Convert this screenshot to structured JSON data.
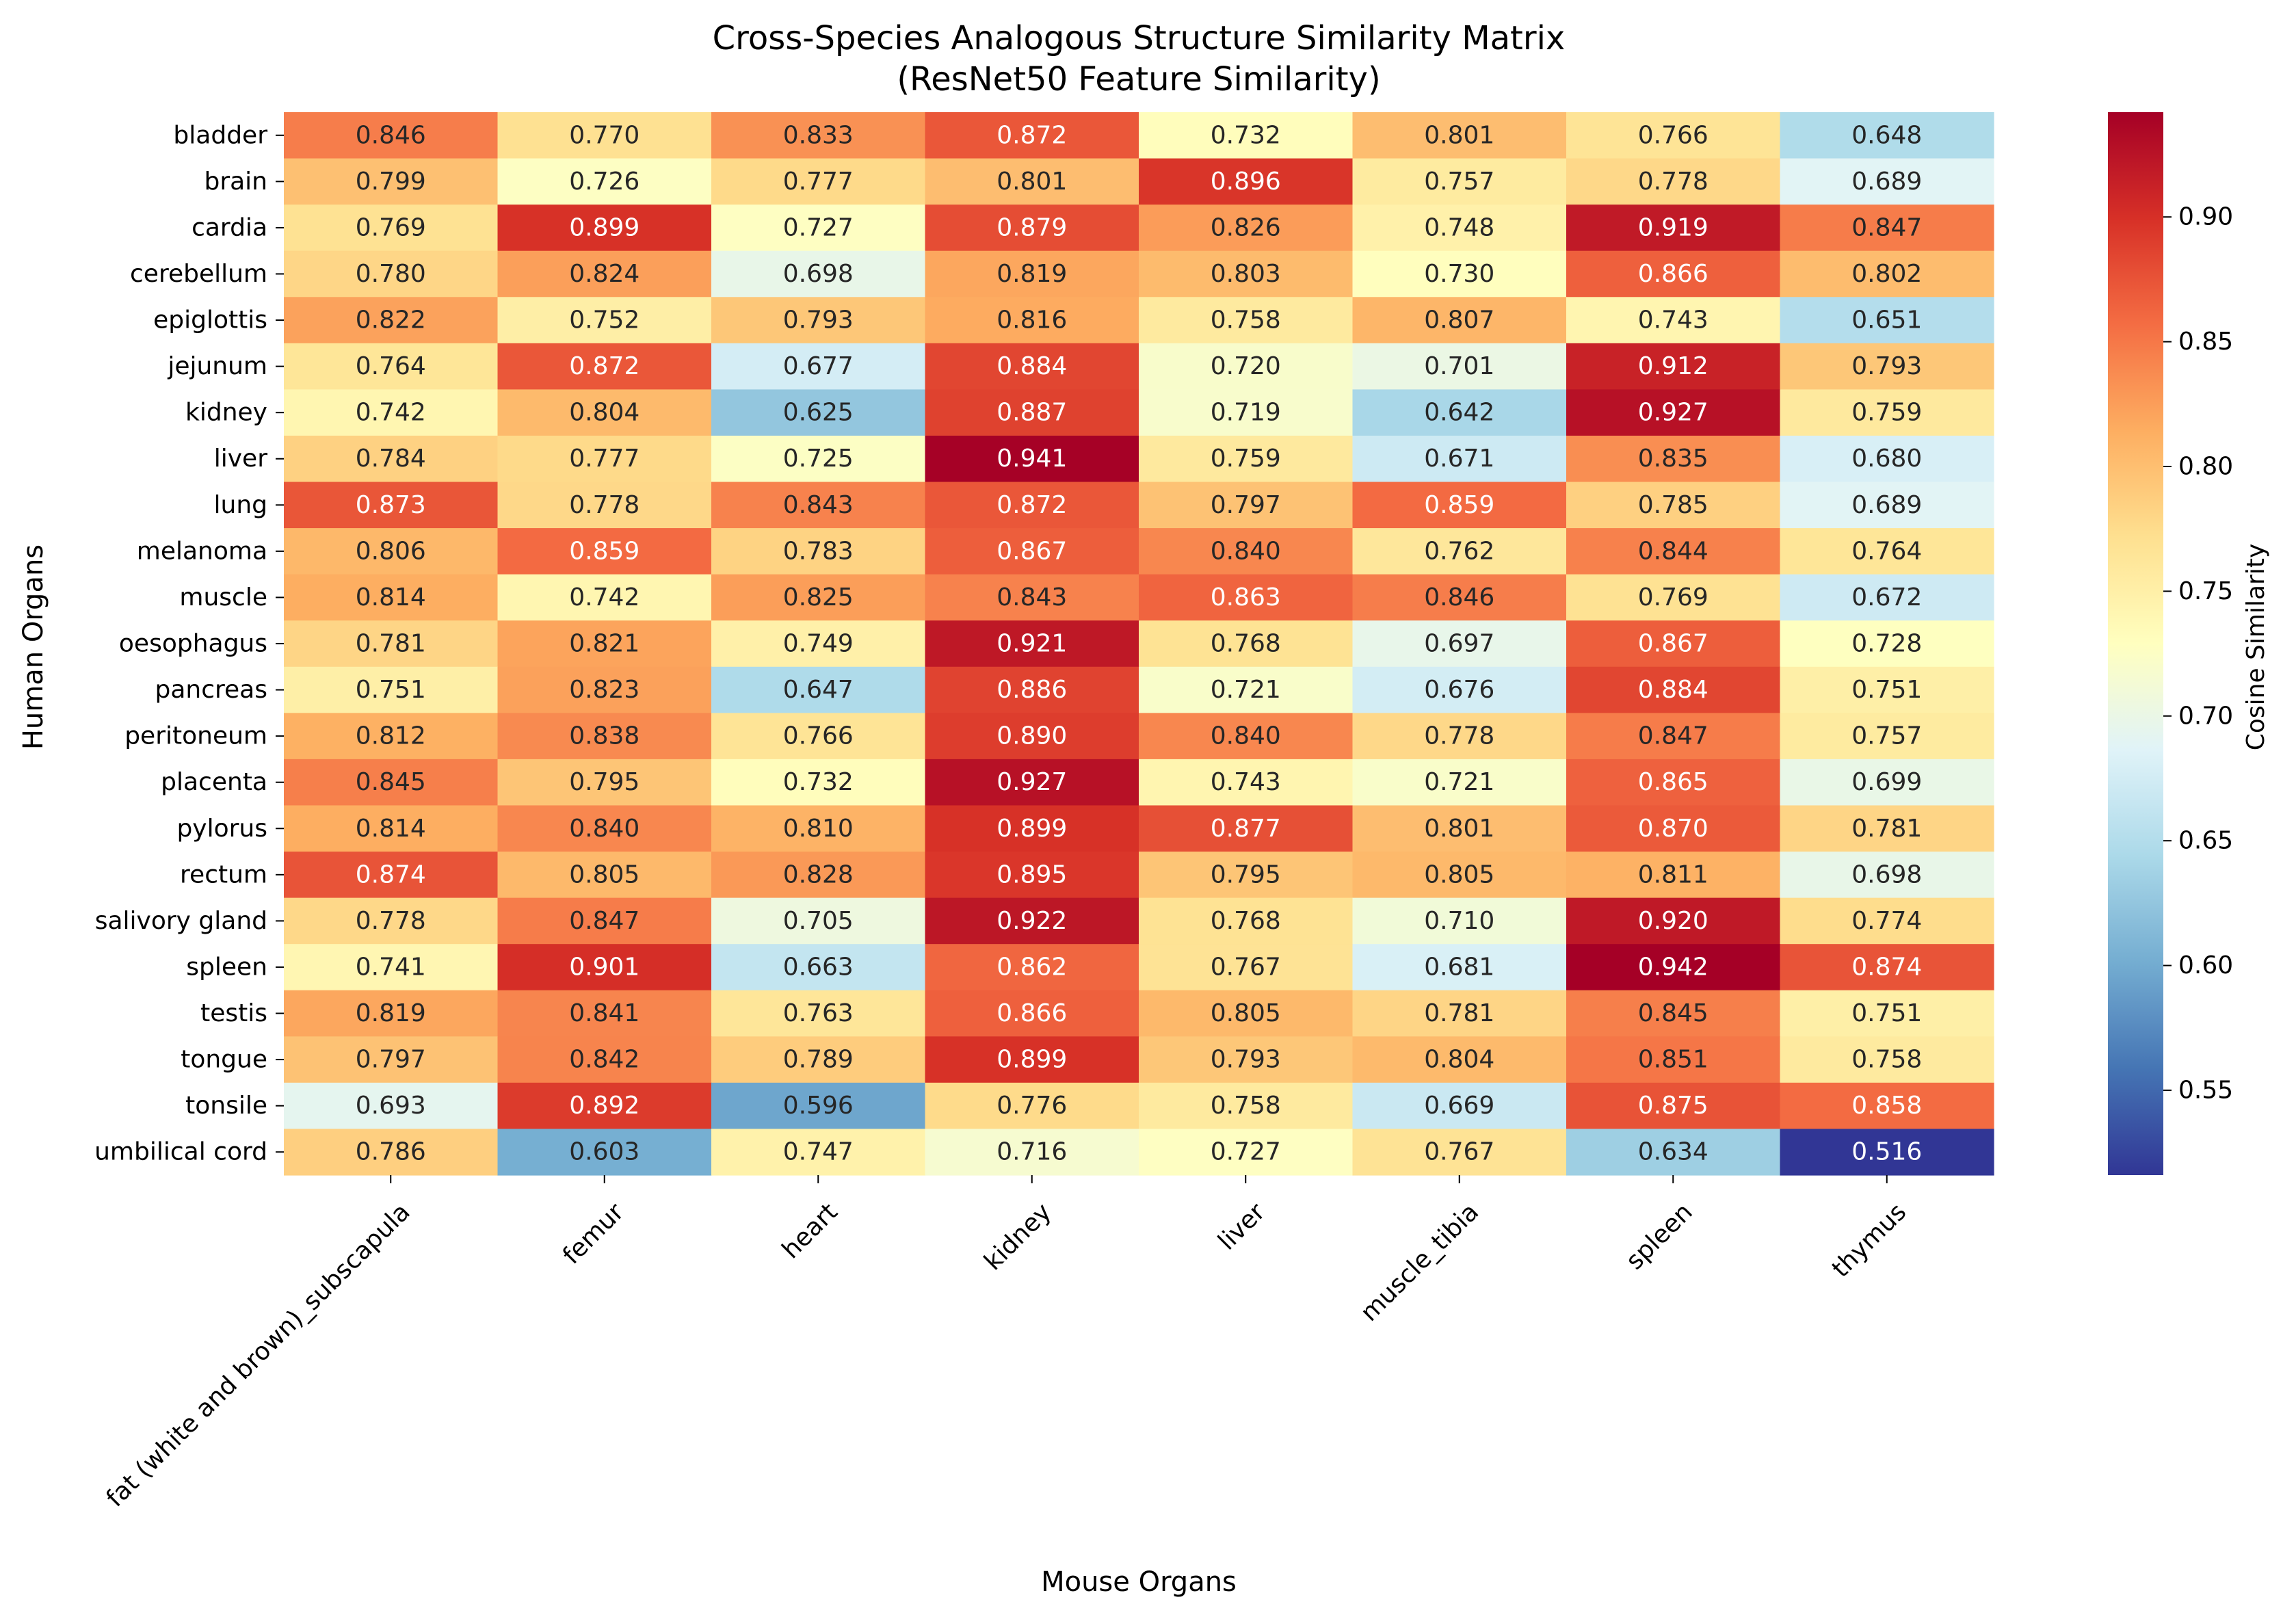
{
  "chart_data": {
    "type": "heatmap",
    "title": "Cross-Species Analogous Structure Similarity Matrix",
    "subtitle": "(ResNet50 Feature Similarity)",
    "xlabel": "Mouse Organs",
    "ylabel": "Human Organs",
    "colorbar_label": "Cosine Similarity",
    "colormap": "RdYlBu_r",
    "vmin": 0.516,
    "vmax": 0.942,
    "colorbar_ticks": [
      "0.55",
      "0.60",
      "0.65",
      "0.70",
      "0.75",
      "0.80",
      "0.85",
      "0.90"
    ],
    "columns": [
      "fat (white and brown)_subscapula",
      "femur",
      "heart",
      "kidney",
      "liver",
      "muscle_tibia",
      "spleen",
      "thymus"
    ],
    "rows": [
      "bladder",
      "brain",
      "cardia",
      "cerebellum",
      "epiglottis",
      "jejunum",
      "kidney",
      "liver",
      "lung",
      "melanoma",
      "muscle",
      "oesophagus",
      "pancreas",
      "peritoneum",
      "placenta",
      "pylorus",
      "rectum",
      "salivory gland",
      "spleen",
      "testis",
      "tongue",
      "tonsile",
      "umbilical cord"
    ],
    "values": [
      [
        0.846,
        0.77,
        0.833,
        0.872,
        0.732,
        0.801,
        0.766,
        0.648
      ],
      [
        0.799,
        0.726,
        0.777,
        0.801,
        0.896,
        0.757,
        0.778,
        0.689
      ],
      [
        0.769,
        0.899,
        0.727,
        0.879,
        0.826,
        0.748,
        0.919,
        0.847
      ],
      [
        0.78,
        0.824,
        0.698,
        0.819,
        0.803,
        0.73,
        0.866,
        0.802
      ],
      [
        0.822,
        0.752,
        0.793,
        0.816,
        0.758,
        0.807,
        0.743,
        0.651
      ],
      [
        0.764,
        0.872,
        0.677,
        0.884,
        0.72,
        0.701,
        0.912,
        0.793
      ],
      [
        0.742,
        0.804,
        0.625,
        0.887,
        0.719,
        0.642,
        0.927,
        0.759
      ],
      [
        0.784,
        0.777,
        0.725,
        0.941,
        0.759,
        0.671,
        0.835,
        0.68
      ],
      [
        0.873,
        0.778,
        0.843,
        0.872,
        0.797,
        0.859,
        0.785,
        0.689
      ],
      [
        0.806,
        0.859,
        0.783,
        0.867,
        0.84,
        0.762,
        0.844,
        0.764
      ],
      [
        0.814,
        0.742,
        0.825,
        0.843,
        0.863,
        0.846,
        0.769,
        0.672
      ],
      [
        0.781,
        0.821,
        0.749,
        0.921,
        0.768,
        0.697,
        0.867,
        0.728
      ],
      [
        0.751,
        0.823,
        0.647,
        0.886,
        0.721,
        0.676,
        0.884,
        0.751
      ],
      [
        0.812,
        0.838,
        0.766,
        0.89,
        0.84,
        0.778,
        0.847,
        0.757
      ],
      [
        0.845,
        0.795,
        0.732,
        0.927,
        0.743,
        0.721,
        0.865,
        0.699
      ],
      [
        0.814,
        0.84,
        0.81,
        0.899,
        0.877,
        0.801,
        0.87,
        0.781
      ],
      [
        0.874,
        0.805,
        0.828,
        0.895,
        0.795,
        0.805,
        0.811,
        0.698
      ],
      [
        0.778,
        0.847,
        0.705,
        0.922,
        0.768,
        0.71,
        0.92,
        0.774
      ],
      [
        0.741,
        0.901,
        0.663,
        0.862,
        0.767,
        0.681,
        0.942,
        0.874
      ],
      [
        0.819,
        0.841,
        0.763,
        0.866,
        0.805,
        0.781,
        0.845,
        0.751
      ],
      [
        0.797,
        0.842,
        0.789,
        0.899,
        0.793,
        0.804,
        0.851,
        0.758
      ],
      [
        0.693,
        0.892,
        0.596,
        0.776,
        0.758,
        0.669,
        0.875,
        0.858
      ],
      [
        0.786,
        0.603,
        0.747,
        0.716,
        0.727,
        0.767,
        0.634,
        0.516
      ]
    ]
  }
}
